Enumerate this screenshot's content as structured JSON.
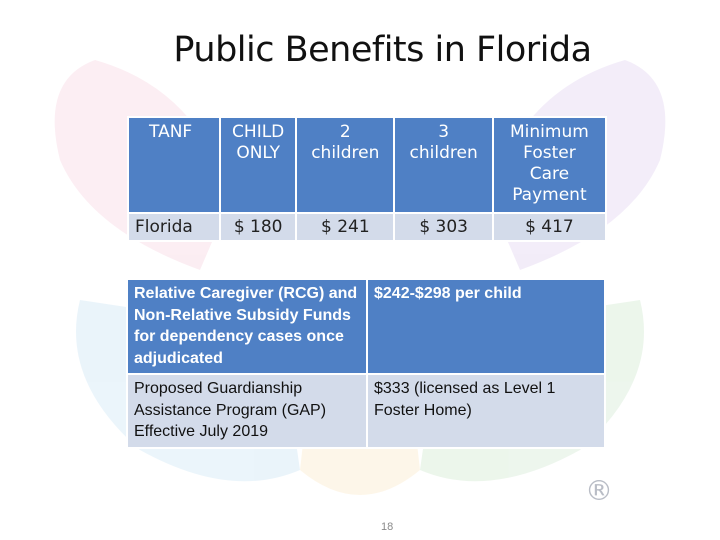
{
  "title": "Public Benefits in Florida",
  "tanf_table": {
    "headers": [
      "TANF",
      "CHILD\nONLY",
      "2\nchildren",
      "3\nchildren",
      "Minimum\nFoster\nCare\nPayment"
    ],
    "row": [
      "Florida",
      "$ 180",
      "$ 241",
      "$ 303",
      "$ 417"
    ]
  },
  "subsidy_table": {
    "rows": [
      [
        "Relative Caregiver (RCG) and Non-Relative Subsidy Funds for dependency cases once adjudicated",
        "$242-$298 per child"
      ],
      [
        "Proposed Guardianship Assistance Program (GAP) Effective July 2019",
        "$333 (licensed as Level 1 Foster Home)"
      ]
    ]
  },
  "registered_mark": "®",
  "page_number": "18"
}
